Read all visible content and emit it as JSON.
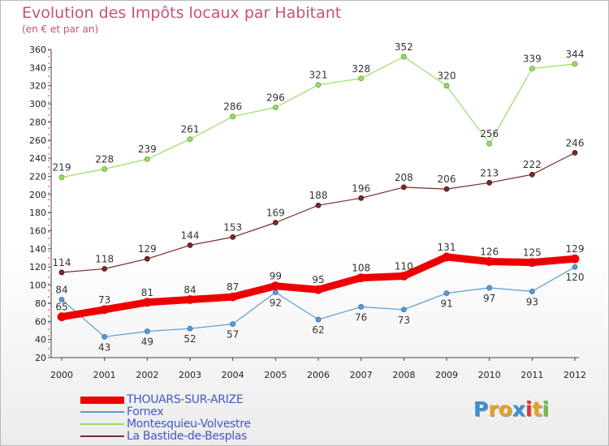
{
  "chart_data": {
    "type": "line",
    "title": "Evolution des Impôts locaux par Habitant",
    "subtitle": "(en € et par an)",
    "xlabel": "",
    "ylabel": "",
    "x": [
      "2000",
      "2001",
      "2002",
      "2003",
      "2004",
      "2005",
      "2006",
      "2007",
      "2008",
      "2009",
      "2010",
      "2011",
      "2012"
    ],
    "yticks": [
      20,
      40,
      60,
      80,
      100,
      120,
      140,
      160,
      180,
      200,
      220,
      240,
      260,
      280,
      300,
      320,
      340,
      360
    ],
    "ylim": [
      20,
      360
    ],
    "grid": false,
    "legend_position": "bottom-left",
    "series": [
      {
        "name": "THOUARS-SUR-ARIZE",
        "color": "#ee0000",
        "values": [
          65,
          73,
          81,
          84,
          87,
          99,
          95,
          108,
          110,
          131,
          126,
          125,
          129
        ],
        "labels": [
          "65",
          "73",
          "81",
          "84",
          "87",
          "99",
          "95",
          "108",
          "110",
          "131",
          "126",
          "125",
          "129"
        ]
      },
      {
        "name": "Fornex",
        "color": "#5b9bd5",
        "values": [
          84,
          43,
          49,
          52,
          57,
          92,
          62,
          76,
          73,
          91,
          97,
          93,
          120
        ],
        "labels": [
          "84",
          "43",
          "49",
          "52",
          "57",
          "92",
          "62",
          "76",
          "73",
          "91",
          "97",
          "93",
          "120"
        ]
      },
      {
        "name": "Montesquieu-Volvestre",
        "color": "#99dd66",
        "values": [
          219,
          228,
          239,
          261,
          286,
          296,
          321,
          328,
          352,
          320,
          256,
          339,
          344
        ],
        "labels": [
          "219",
          "228",
          "239",
          "261",
          "286",
          "296",
          "321",
          "328",
          "352",
          "320",
          "256",
          "339",
          "344"
        ]
      },
      {
        "name": "La Bastide-de-Besplas",
        "color": "#7a2a2a",
        "values": [
          114,
          118,
          129,
          144,
          153,
          169,
          188,
          196,
          208,
          206,
          213,
          222,
          246
        ],
        "labels": [
          "114",
          "118",
          "129",
          "144",
          "153",
          "169",
          "188",
          "196",
          "208",
          "206",
          "213",
          "222",
          "246"
        ]
      }
    ]
  },
  "logo": {
    "letters": [
      "P",
      "r",
      "o",
      "x",
      "i",
      "t",
      "i"
    ],
    "colors": [
      "#3a8fd6",
      "#e8a020",
      "#e8a020",
      "#3a8fd6",
      "#e83030",
      "#e8a020",
      "#6cc040"
    ]
  }
}
